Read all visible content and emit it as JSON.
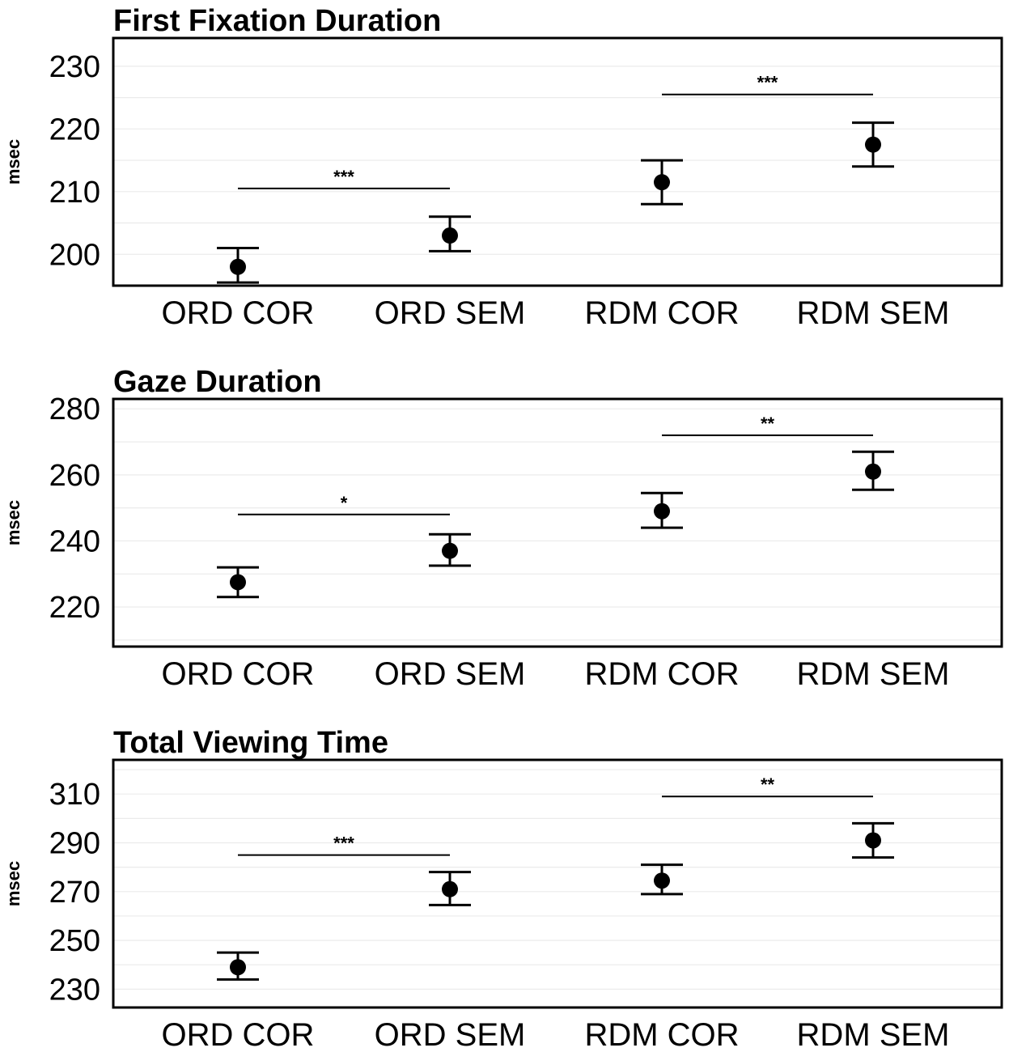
{
  "chart_data": [
    {
      "type": "scatter",
      "title": "First Fixation Duration",
      "ylabel": "msec",
      "xlabel": "",
      "categories": [
        "ORD COR",
        "ORD SEM",
        "RDM COR",
        "RDM SEM"
      ],
      "values": [
        198,
        203,
        211.5,
        217.5
      ],
      "error_low": [
        195.5,
        200.5,
        208,
        214
      ],
      "error_high": [
        201,
        206,
        215,
        221
      ],
      "ylim": [
        195,
        234.5
      ],
      "yticks": [
        200,
        210,
        220,
        230
      ],
      "ytick_labels": [
        "200",
        "210",
        "220",
        "230"
      ],
      "grid": true,
      "significance": [
        {
          "from": 0,
          "to": 1,
          "y": 210.5,
          "label": "***"
        },
        {
          "from": 2,
          "to": 3,
          "y": 225.5,
          "label": "***"
        }
      ]
    },
    {
      "type": "scatter",
      "title": "Gaze Duration",
      "ylabel": "msec",
      "xlabel": "",
      "categories": [
        "ORD COR",
        "ORD SEM",
        "RDM COR",
        "RDM SEM"
      ],
      "values": [
        227.5,
        237,
        249,
        261
      ],
      "error_low": [
        223,
        232.5,
        244,
        255.5
      ],
      "error_high": [
        232,
        242,
        254.5,
        267
      ],
      "ylim": [
        208,
        283
      ],
      "yticks": [
        220,
        240,
        260,
        280
      ],
      "ytick_labels": [
        "220",
        "240",
        "260",
        "280"
      ],
      "grid": true,
      "significance": [
        {
          "from": 0,
          "to": 1,
          "y": 248,
          "label": "*"
        },
        {
          "from": 2,
          "to": 3,
          "y": 272,
          "label": "**"
        }
      ]
    },
    {
      "type": "scatter",
      "title": "Total Viewing Time",
      "ylabel": "msec",
      "xlabel": "",
      "categories": [
        "ORD COR",
        "ORD SEM",
        "RDM COR",
        "RDM SEM"
      ],
      "values": [
        239,
        271,
        274.5,
        291
      ],
      "error_low": [
        234,
        264.5,
        269,
        284
      ],
      "error_high": [
        245,
        278,
        281,
        298
      ],
      "ylim": [
        222.5,
        324
      ],
      "yticks": [
        230,
        250,
        270,
        290,
        310
      ],
      "ytick_labels": [
        "230",
        "250",
        "270",
        "290",
        "310"
      ],
      "grid": true,
      "significance": [
        {
          "from": 0,
          "to": 1,
          "y": 285,
          "label": "***"
        },
        {
          "from": 2,
          "to": 3,
          "y": 309,
          "label": "**"
        }
      ]
    }
  ]
}
